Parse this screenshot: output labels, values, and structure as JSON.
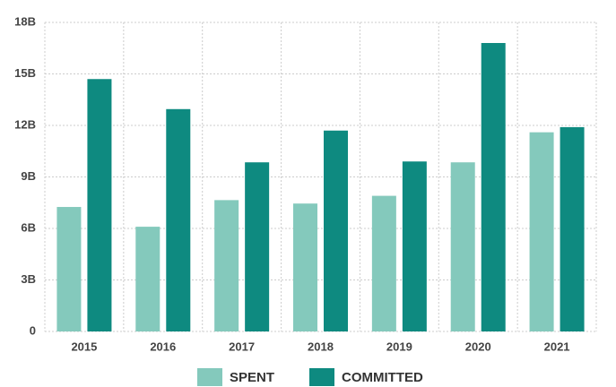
{
  "chart_data": {
    "type": "bar",
    "categories": [
      "2015",
      "2016",
      "2017",
      "2018",
      "2019",
      "2020",
      "2021"
    ],
    "series": [
      {
        "name": "SPENT",
        "color": "#84c9bc",
        "values": [
          7.25,
          6.1,
          7.65,
          7.45,
          7.9,
          9.85,
          11.6
        ]
      },
      {
        "name": "COMMITTED",
        "color": "#0e8a80",
        "values": [
          14.7,
          12.95,
          9.85,
          11.7,
          9.9,
          16.8,
          11.9
        ]
      }
    ],
    "ylim": [
      0,
      18
    ],
    "yticks": [
      0,
      {
        "value": 3,
        "label": "3B"
      },
      {
        "value": 6,
        "label": "6B"
      },
      {
        "value": 9,
        "label": "9B"
      },
      {
        "value": 12,
        "label": "12B"
      },
      {
        "value": 15,
        "label": "15B"
      },
      {
        "value": 18,
        "label": "18B"
      }
    ],
    "grid": true,
    "legend": "bottom"
  }
}
